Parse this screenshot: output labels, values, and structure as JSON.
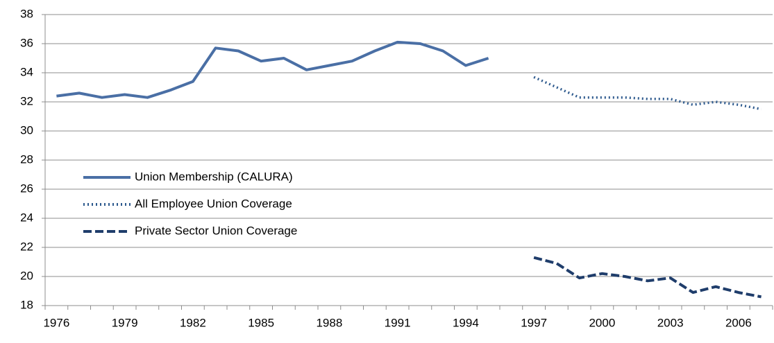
{
  "chart_data": {
    "type": "line",
    "categories": [
      "1976",
      null,
      null,
      "1979",
      null,
      null,
      "1982",
      null,
      null,
      "1985",
      null,
      null,
      "1988",
      null,
      null,
      "1991",
      null,
      null,
      "1994",
      null,
      null,
      "1997",
      null,
      null,
      "2000",
      null,
      null,
      "2003",
      null,
      null,
      "2006",
      null
    ],
    "series": [
      {
        "name": "Union Membership (CALURA)",
        "color": "#4a6fa5",
        "dash": "solid",
        "values": [
          32.4,
          32.6,
          32.3,
          32.5,
          32.3,
          32.8,
          33.4,
          35.7,
          35.5,
          34.8,
          35.0,
          34.2,
          34.5,
          34.8,
          35.5,
          36.1,
          36.0,
          35.5,
          34.5,
          35.0,
          null,
          null,
          null,
          null,
          null,
          null,
          null,
          null,
          null,
          null,
          null,
          null
        ]
      },
      {
        "name": "All Employee Union Coverage",
        "color": "#2e5a8e",
        "dash": "dotted",
        "values": [
          null,
          null,
          null,
          null,
          null,
          null,
          null,
          null,
          null,
          null,
          null,
          null,
          null,
          null,
          null,
          null,
          null,
          null,
          null,
          null,
          null,
          33.7,
          33.0,
          32.3,
          32.3,
          32.3,
          32.2,
          32.2,
          31.8,
          32.0,
          31.8,
          31.5
        ]
      },
      {
        "name": "Private Sector Union Coverage",
        "color": "#1f3d6b",
        "dash": "dashed",
        "values": [
          null,
          null,
          null,
          null,
          null,
          null,
          null,
          null,
          null,
          null,
          null,
          null,
          null,
          null,
          null,
          null,
          null,
          null,
          null,
          null,
          null,
          21.3,
          20.9,
          19.9,
          20.2,
          20.0,
          19.7,
          19.9,
          18.9,
          19.3,
          18.9,
          18.6
        ]
      }
    ],
    "ylim": [
      18,
      38
    ],
    "yticks": [
      18,
      20,
      22,
      24,
      26,
      28,
      30,
      32,
      34,
      36,
      38
    ],
    "grid": true,
    "legend": "left"
  }
}
